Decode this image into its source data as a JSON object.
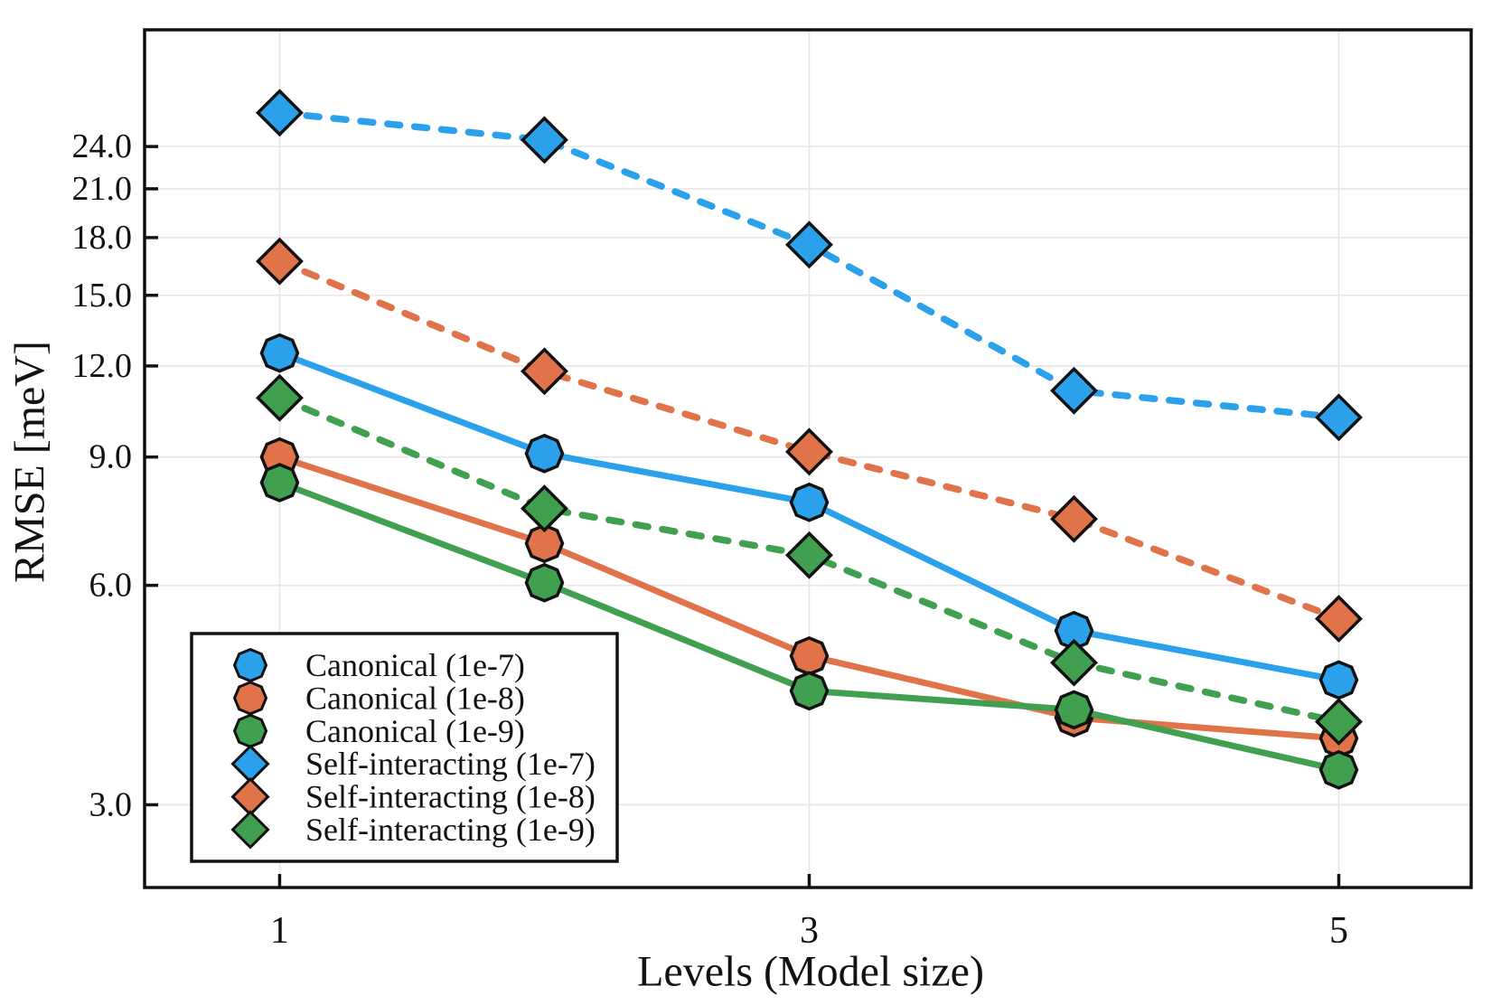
{
  "figure": {
    "background": "#FFFFFF"
  },
  "style": {
    "grid_color": "#E6E6E6",
    "frame_color": "#121212",
    "marker_edge_color": "#121212",
    "text_color": "#121212",
    "legend_background": "#FFFFFF"
  },
  "chart_data": {
    "type": "line",
    "title": "",
    "xlabel": "Levels (Model size)",
    "ylabel": "RMSE [meV]",
    "x": [
      1,
      2,
      3,
      4,
      5
    ],
    "series": [
      {
        "name": "Canonical (1e-7)",
        "color": "#2BA1EC",
        "marker": "octagon",
        "line_style": "solid",
        "values": [
          12.5,
          9.1,
          7.8,
          5.2,
          4.45
        ]
      },
      {
        "name": "Canonical (1e-8)",
        "color": "#E0734A",
        "marker": "octagon",
        "line_style": "solid",
        "values": [
          9.0,
          6.85,
          4.8,
          3.95,
          3.7
        ]
      },
      {
        "name": "Canonical (1e-9)",
        "color": "#40A04F",
        "marker": "octagon",
        "line_style": "solid",
        "values": [
          8.3,
          6.05,
          4.3,
          4.05,
          3.35
        ]
      },
      {
        "name": "Self-interacting (1e-7)",
        "color": "#2BA1EC",
        "marker": "diamond",
        "line_style": "dashed",
        "values": [
          26.7,
          24.5,
          17.6,
          11.1,
          10.2
        ]
      },
      {
        "name": "Self-interacting (1e-8)",
        "color": "#E0734A",
        "marker": "diamond",
        "line_style": "dashed",
        "values": [
          16.7,
          11.8,
          9.15,
          7.4,
          5.4
        ]
      },
      {
        "name": "Self-interacting (1e-9)",
        "color": "#40A04F",
        "marker": "diamond",
        "line_style": "dashed",
        "values": [
          10.85,
          7.65,
          6.6,
          4.7,
          3.9
        ]
      }
    ],
    "x_ticks": {
      "values": [
        1,
        3,
        5
      ],
      "labels": [
        "1",
        "3",
        "5"
      ]
    },
    "y_ticks": {
      "values": [
        3,
        6,
        9,
        12,
        15,
        18,
        21,
        24
      ],
      "labels": [
        "3.0",
        "6.0",
        "9.0",
        "12.0",
        "15.0",
        "18.0",
        "21.0",
        "24.0"
      ]
    },
    "y_scale": "log",
    "xlim": [
      0.49,
      5.5
    ],
    "ylim": [
      2.31,
      34.7
    ],
    "grid": true,
    "legend_position": "bottom-left"
  }
}
